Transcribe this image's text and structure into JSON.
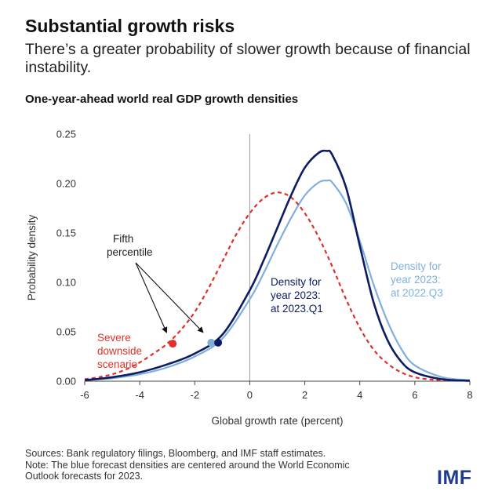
{
  "header": {
    "title": "Substantial growth risks",
    "subtitle": "There’s a greater probability of slower growth because of financial instability."
  },
  "chart_data": {
    "type": "line",
    "title": "One-year-ahead world real GDP growth densities",
    "xlabel": "Global growth rate (percent)",
    "ylabel": "Probability density",
    "xlim": [
      -6,
      8
    ],
    "ylim": [
      0,
      0.25
    ],
    "xticks": [
      "-6",
      "-4",
      "-2",
      "0",
      "2",
      "4",
      "6",
      "8"
    ],
    "yticks": [
      "0.00",
      "0.05",
      "0.10",
      "0.15",
      "0.20",
      "0.25"
    ],
    "grid": false,
    "series": [
      {
        "name": "Density for year 2023: at 2023.Q1",
        "label_lines": [
          "Density for",
          "year 2023:",
          "at 2023.Q1"
        ],
        "color": "#0d1b63",
        "style": "solid",
        "x": [
          -6,
          -5,
          -4,
          -3,
          -2,
          -1,
          0,
          0.5,
          1,
          1.5,
          2,
          2.5,
          2.8,
          3,
          3.5,
          4,
          4.5,
          5,
          5.5,
          6,
          7,
          8
        ],
        "y": [
          0.001,
          0.004,
          0.009,
          0.017,
          0.028,
          0.047,
          0.092,
          0.122,
          0.155,
          0.188,
          0.216,
          0.231,
          0.233,
          0.229,
          0.196,
          0.137,
          0.08,
          0.042,
          0.02,
          0.009,
          0.002,
          0.0005
        ]
      },
      {
        "name": "Density for year 2023: at 2022.Q3",
        "label_lines": [
          "Density for",
          "year 2023:",
          "at 2022.Q3"
        ],
        "color": "#7fb0dd",
        "style": "solid",
        "x": [
          -6,
          -5,
          -4,
          -3,
          -2,
          -1,
          0,
          0.5,
          1,
          1.5,
          2,
          2.5,
          2.8,
          3,
          3.5,
          4,
          4.5,
          5,
          5.5,
          6,
          7,
          8
        ],
        "y": [
          0.001,
          0.003,
          0.007,
          0.014,
          0.025,
          0.043,
          0.083,
          0.109,
          0.138,
          0.165,
          0.188,
          0.201,
          0.203,
          0.201,
          0.18,
          0.142,
          0.098,
          0.061,
          0.033,
          0.016,
          0.004,
          0.001
        ]
      },
      {
        "name": "Severe downside scenario",
        "label_lines": [
          "Severe",
          "downside",
          "scenario"
        ],
        "color": "#e0302a",
        "style": "dashed",
        "x": [
          -6,
          -5.5,
          -5,
          -4.5,
          -4,
          -3.5,
          -3,
          -2.5,
          -2,
          -1.5,
          -1,
          -0.5,
          0,
          0.5,
          1,
          1.5,
          2,
          2.5,
          3,
          3.5,
          4,
          4.5,
          5,
          5.5,
          6,
          6.5,
          7,
          8
        ],
        "y": [
          0.002,
          0.004,
          0.007,
          0.012,
          0.019,
          0.028,
          0.038,
          0.052,
          0.07,
          0.094,
          0.121,
          0.148,
          0.17,
          0.185,
          0.191,
          0.186,
          0.17,
          0.146,
          0.116,
          0.083,
          0.054,
          0.032,
          0.018,
          0.009,
          0.004,
          0.002,
          0.001,
          0.0003
        ]
      }
    ],
    "markers": [
      {
        "x": -2.8,
        "y": 0.038,
        "color": "#e0302a"
      },
      {
        "x": -1.4,
        "y": 0.039,
        "color": "#7fb0dd"
      },
      {
        "x": -1.15,
        "y": 0.039,
        "color": "#0d1b63"
      }
    ],
    "annotation": {
      "lines": [
        "Fifth",
        "percentile"
      ]
    }
  },
  "footer": {
    "sources": "Sources: Bank regulatory filings, Bloomberg, and IMF staff estimates.",
    "note_line1": "Note: The blue forecast densities are centered around the World Economic",
    "note_line2": "Outlook forecasts for 2023."
  },
  "logo": {
    "text": "IMF",
    "color": "#1f3b8a"
  }
}
